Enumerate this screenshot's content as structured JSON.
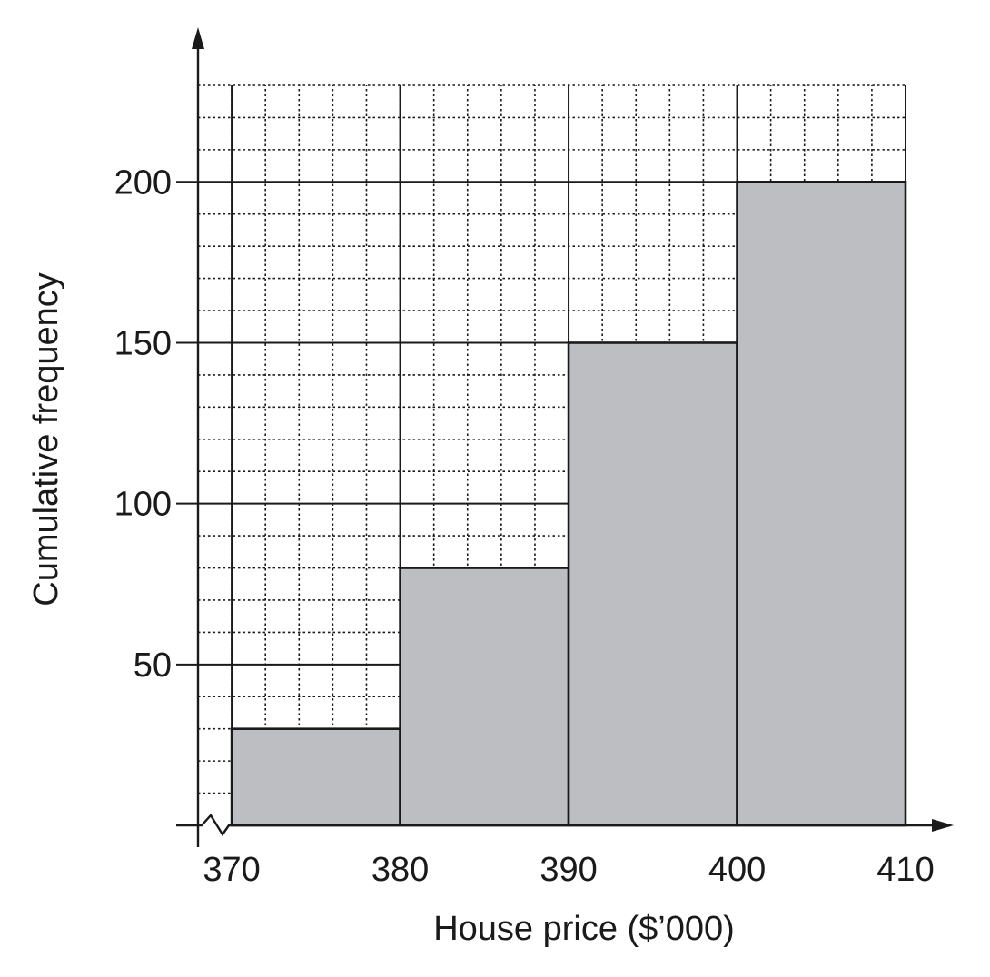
{
  "chart_data": {
    "type": "bar",
    "title": "",
    "xlabel": "House price ($’000)",
    "ylabel": "Cumulative frequency",
    "bins": [
      {
        "from": 370,
        "to": 380,
        "value": 30
      },
      {
        "from": 380,
        "to": 390,
        "value": 80
      },
      {
        "from": 390,
        "to": 400,
        "value": 150
      },
      {
        "from": 400,
        "to": 410,
        "value": 200
      }
    ],
    "x_ticks": [
      "370",
      "380",
      "390",
      "400",
      "410"
    ],
    "y_ticks": [
      "50",
      "100",
      "150",
      "200"
    ],
    "xlim": [
      368,
      410
    ],
    "ylim": [
      0,
      230
    ],
    "axis_break": "x",
    "grid": {
      "minor_x": 2,
      "minor_y": 10,
      "major_x": 10,
      "major_y": 50
    },
    "colors": {
      "bar_fill": "#bdbec1",
      "bar_stroke": "#1a1a1a",
      "grid": "#1a1a1a"
    }
  }
}
